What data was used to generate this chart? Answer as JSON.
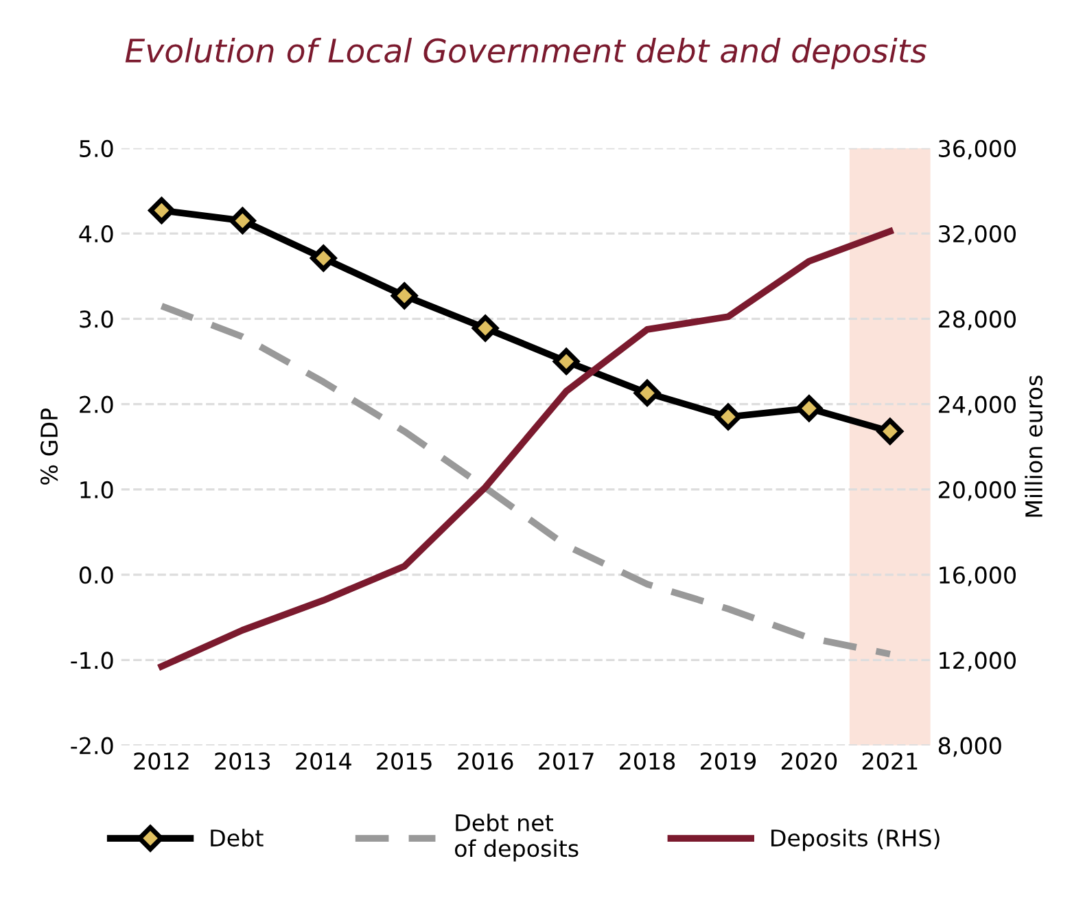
{
  "chart_data": {
    "type": "line",
    "title": "Evolution of Local Government debt and deposits",
    "ylabel": "% GDP",
    "y2label": "Million euros",
    "x": [
      2012,
      2013,
      2014,
      2015,
      2016,
      2017,
      2018,
      2019,
      2020,
      2021
    ],
    "xlim": [
      2011.5,
      2021.5
    ],
    "xticks": [
      2012,
      2013,
      2014,
      2015,
      2016,
      2017,
      2018,
      2019,
      2020,
      2021
    ],
    "ylim": [
      -2,
      5
    ],
    "yticks": [
      {
        "value": -2,
        "label": "-2.0"
      },
      {
        "value": -1,
        "label": "-1.0"
      },
      {
        "value": 0,
        "label": "0.0"
      },
      {
        "value": 1,
        "label": "1.0"
      },
      {
        "value": 2,
        "label": "2.0"
      },
      {
        "value": 3,
        "label": "3.0"
      },
      {
        "value": 4,
        "label": "4.0"
      },
      {
        "value": 5,
        "label": "5.0"
      }
    ],
    "y2lim": [
      8000,
      36000
    ],
    "y2ticks": [
      {
        "value": 8000,
        "label": "8,000"
      },
      {
        "value": 12000,
        "label": "12,000"
      },
      {
        "value": 16000,
        "label": "16,000"
      },
      {
        "value": 20000,
        "label": "20,000"
      },
      {
        "value": 24000,
        "label": "24,000"
      },
      {
        "value": 28000,
        "label": "28,000"
      },
      {
        "value": 32000,
        "label": "32,000"
      },
      {
        "value": 36000,
        "label": "36,000"
      }
    ],
    "series": [
      {
        "name": "Debt",
        "color": "#000000",
        "marker": "diamond",
        "line_style": "solid",
        "values": [
          4.27,
          4.15,
          3.71,
          3.27,
          2.89,
          2.5,
          2.13,
          1.85,
          1.95,
          1.68
        ]
      },
      {
        "name": "Debt net\nof deposits",
        "color": "#999999",
        "marker": "none",
        "line_style": "dashed",
        "values": [
          3.15,
          2.79,
          2.26,
          1.68,
          1.02,
          0.34,
          -0.11,
          -0.4,
          -0.74,
          -0.93
        ]
      },
      {
        "name": "Deposits (RHS)",
        "color": "#7b1a2e",
        "marker": "none",
        "line_style": "solid",
        "axis": "y2",
        "values": [
          11700,
          13400,
          14800,
          16400,
          20100,
          24600,
          27500,
          28100,
          30700,
          32100
        ]
      }
    ],
    "bands": [
      {
        "axis": "x",
        "from": 2020.5,
        "to": 2021.5,
        "color": "#fbe3da"
      }
    ],
    "grid": "y",
    "legend": "bottom"
  }
}
